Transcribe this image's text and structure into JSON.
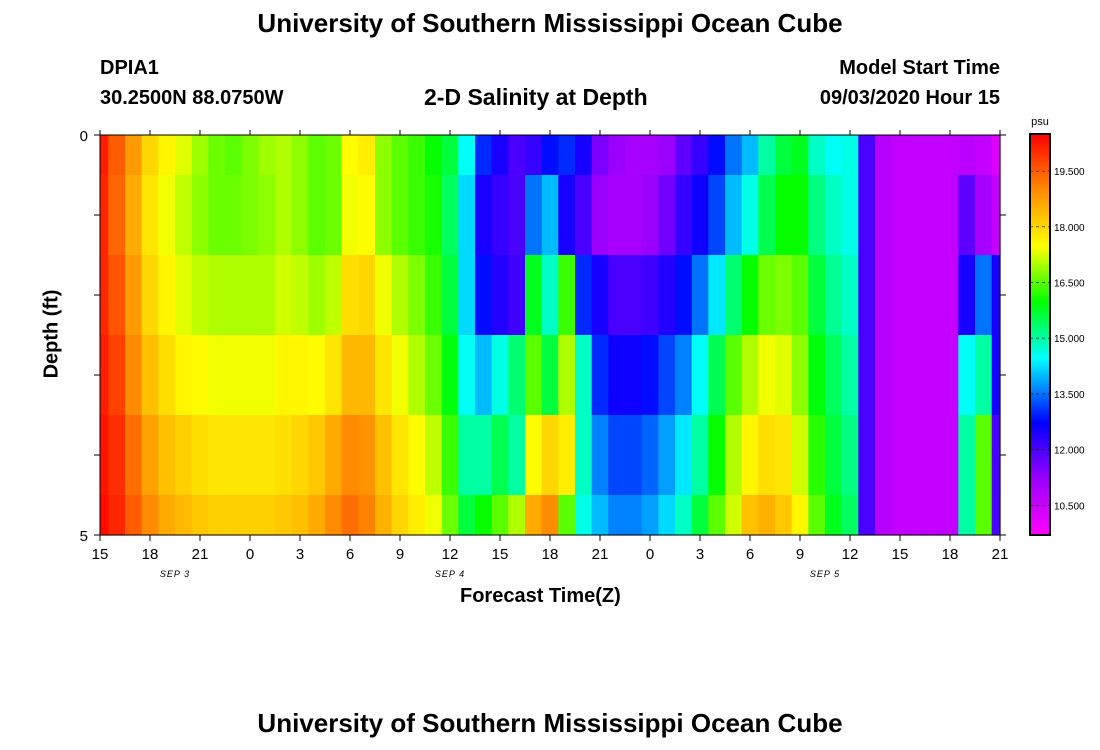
{
  "page": {
    "title_top": "University of Southern Mississippi Ocean Cube",
    "title_bottom": "University of Southern Mississippi Ocean Cube",
    "station": "DPIA1",
    "coords": "30.2500N 88.0750W",
    "model_start_label": "Model Start Time",
    "model_start_value": "09/03/2020 Hour 15"
  },
  "chart_data": {
    "type": "heatmap",
    "title": "2-D Salinity at Depth",
    "xlabel": "Forecast Time(Z)",
    "ylabel": "Depth (ft)",
    "colorbar_unit": "psu",
    "ylim": [
      0,
      5
    ],
    "yticks": [
      "0",
      "5"
    ],
    "x_start_hour_offset": 0,
    "x_end_hour_offset": 54,
    "xticks": [
      "15",
      "18",
      "21",
      "0",
      "3",
      "6",
      "9",
      "12",
      "15",
      "18",
      "21",
      "0",
      "3",
      "6",
      "9",
      "12",
      "15",
      "18",
      "21"
    ],
    "date_labels": [
      {
        "label": "SEP 3",
        "hour_offset": 4.5
      },
      {
        "label": "SEP 4",
        "hour_offset": 21
      },
      {
        "label": "SEP 5",
        "hour_offset": 43.5
      }
    ],
    "colorbar": {
      "min": 9.7,
      "max": 20.5,
      "ticks": [
        10.5,
        12.0,
        13.5,
        15.0,
        16.5,
        18.0,
        19.5
      ],
      "tick_labels": [
        "10.500",
        "12.000",
        "13.500",
        "15.000",
        "16.500",
        "18.000",
        "19.500"
      ]
    },
    "depth_levels": [
      "0-0.5",
      "0.5-1.5",
      "1.5-2.5",
      "2.5-3.5",
      "3.5-4.5",
      "4.5-5"
    ],
    "hours": [
      0,
      1,
      2,
      3,
      4,
      5,
      6,
      7,
      8,
      9,
      10,
      11,
      12,
      13,
      14,
      15,
      16,
      17,
      18,
      19,
      20,
      21,
      22,
      23,
      24,
      25,
      26,
      27,
      28,
      29,
      30,
      31,
      32,
      33,
      34,
      35,
      36,
      37,
      38,
      39,
      40,
      41,
      42,
      43,
      44,
      45,
      46,
      47,
      48,
      49,
      50,
      51,
      52,
      53,
      54
    ],
    "salinity": [
      [
        20.2,
        19.5,
        18.8,
        18.0,
        17.6,
        17.3,
        16.9,
        16.6,
        16.5,
        16.7,
        16.9,
        17.0,
        16.8,
        16.5,
        16.6,
        17.5,
        17.7,
        16.8,
        16.5,
        16.3,
        16.0,
        15.6,
        14.5,
        13.0,
        12.5,
        12.0,
        12.2,
        12.8,
        13.0,
        12.5,
        11.5,
        11.2,
        11.0,
        11.0,
        11.2,
        11.8,
        12.2,
        12.8,
        13.5,
        14.0,
        15.0,
        15.6,
        15.8,
        14.8,
        14.5,
        14.6,
        12.0,
        10.8,
        10.6,
        10.6,
        10.6,
        10.6,
        10.7,
        10.6,
        10.2
      ],
      [
        20.1,
        19.4,
        18.6,
        17.8,
        17.4,
        17.1,
        16.8,
        16.6,
        16.6,
        16.7,
        16.8,
        17.0,
        16.8,
        16.5,
        16.6,
        17.4,
        17.5,
        16.8,
        16.5,
        16.3,
        16.1,
        15.4,
        14.2,
        12.5,
        12.2,
        12.0,
        13.5,
        14.0,
        12.5,
        12.0,
        11.2,
        11.0,
        11.0,
        11.2,
        11.6,
        12.2,
        12.6,
        13.2,
        14.0,
        14.6,
        15.5,
        16.0,
        16.0,
        15.2,
        14.8,
        14.6,
        12.0,
        10.8,
        10.6,
        10.6,
        10.6,
        10.6,
        11.8,
        11.0,
        10.6
      ],
      [
        20.1,
        19.6,
        18.8,
        18.0,
        17.6,
        17.3,
        17.1,
        17.0,
        17.0,
        17.0,
        17.0,
        17.2,
        17.1,
        16.9,
        17.1,
        17.9,
        18.0,
        17.4,
        17.0,
        16.7,
        16.3,
        15.6,
        14.2,
        12.8,
        12.4,
        12.1,
        15.8,
        14.8,
        16.3,
        13.0,
        12.5,
        12.0,
        12.0,
        12.1,
        12.4,
        12.8,
        13.5,
        14.3,
        15.3,
        16.0,
        16.6,
        16.7,
        16.5,
        15.6,
        15.1,
        14.8,
        12.0,
        10.8,
        10.6,
        10.6,
        10.6,
        10.6,
        12.5,
        13.5,
        12.5
      ],
      [
        20.2,
        19.8,
        19.0,
        18.3,
        17.9,
        17.6,
        17.5,
        17.4,
        17.4,
        17.4,
        17.4,
        17.6,
        17.6,
        17.5,
        17.8,
        18.4,
        18.4,
        17.8,
        17.4,
        17.0,
        16.6,
        15.9,
        14.5,
        14.0,
        14.6,
        15.3,
        16.5,
        15.6,
        17.0,
        14.8,
        13.0,
        12.6,
        12.6,
        12.8,
        13.2,
        13.6,
        14.5,
        15.5,
        16.5,
        17.0,
        17.4,
        17.3,
        16.8,
        15.9,
        15.4,
        15.0,
        12.0,
        10.8,
        10.6,
        10.6,
        10.6,
        10.6,
        14.5,
        15.0,
        12.5
      ],
      [
        20.3,
        20.0,
        19.3,
        18.7,
        18.3,
        18.1,
        17.9,
        17.8,
        17.8,
        17.8,
        17.8,
        17.9,
        18.0,
        18.2,
        18.6,
        19.0,
        18.9,
        18.3,
        17.8,
        17.5,
        17.1,
        16.3,
        15.0,
        15.0,
        15.5,
        15.0,
        17.5,
        18.0,
        17.7,
        14.8,
        13.6,
        13.2,
        13.2,
        13.4,
        13.8,
        14.3,
        15.0,
        16.0,
        17.0,
        17.6,
        17.9,
        17.8,
        17.2,
        16.2,
        15.6,
        15.2,
        12.0,
        10.8,
        10.6,
        10.6,
        10.6,
        10.6,
        15.0,
        16.5,
        12.0
      ],
      [
        20.4,
        20.1,
        19.5,
        19.0,
        18.6,
        18.4,
        18.2,
        18.1,
        18.1,
        18.1,
        18.1,
        18.2,
        18.3,
        18.6,
        19.0,
        19.3,
        19.1,
        18.5,
        18.0,
        17.7,
        17.4,
        16.6,
        15.6,
        16.0,
        16.5,
        17.0,
        18.6,
        19.0,
        16.5,
        14.6,
        14.0,
        13.6,
        13.6,
        13.8,
        14.2,
        14.8,
        15.6,
        16.5,
        17.2,
        18.3,
        18.5,
        18.2,
        17.6,
        16.5,
        15.8,
        15.4,
        12.0,
        10.8,
        10.6,
        10.6,
        10.6,
        10.6,
        15.0,
        16.5,
        12.0
      ]
    ]
  }
}
